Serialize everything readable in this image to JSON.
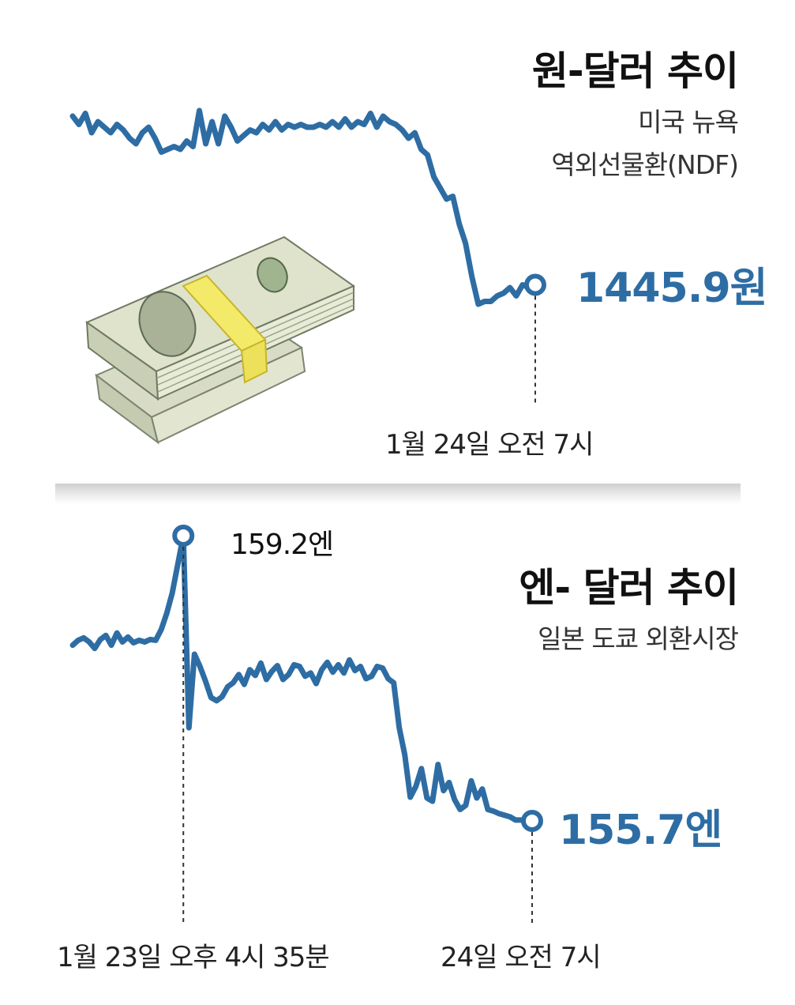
{
  "colors": {
    "line": "#2e6da4",
    "text": "#111111",
    "divider": "#d6d6d6"
  },
  "chart_data": [
    {
      "type": "line",
      "title": "원-달러 추이",
      "subtitle_lines": [
        "미국 뉴욕",
        "역외선물환(NDF)"
      ],
      "end_value_label": "1445.9원",
      "end_time_label": "1월 24일 오전 7시",
      "y": [
        1452.0,
        1451.7,
        1452.1,
        1451.4,
        1451.8,
        1451.6,
        1451.4,
        1451.7,
        1451.5,
        1451.2,
        1451.0,
        1451.4,
        1451.6,
        1451.2,
        1450.7,
        1450.8,
        1450.9,
        1450.8,
        1451.1,
        1450.9,
        1452.2,
        1451.0,
        1451.8,
        1451.0,
        1452.0,
        1451.6,
        1451.1,
        1451.3,
        1451.5,
        1451.4,
        1451.7,
        1451.5,
        1451.8,
        1451.5,
        1451.7,
        1451.6,
        1451.7,
        1451.6,
        1451.6,
        1451.7,
        1451.6,
        1451.8,
        1451.6,
        1451.9,
        1451.6,
        1451.8,
        1451.7,
        1452.1,
        1451.6,
        1452.0,
        1451.8,
        1451.7,
        1451.5,
        1451.2,
        1451.4,
        1450.8,
        1450.6,
        1449.8,
        1449.4,
        1449.0,
        1449.1,
        1448.1,
        1447.4,
        1446.2,
        1445.2,
        1445.3,
        1445.3,
        1445.5,
        1445.6,
        1445.8,
        1445.5,
        1445.9,
        1445.8,
        1445.9
      ]
    },
    {
      "type": "line",
      "title": "엔- 달러 추이",
      "subtitle": "일본 도쿄 외환시장",
      "peak_value_label": "159.2엔",
      "peak_time_label": "1월 23일 오후 4시 35분",
      "end_value_label": "155.7엔",
      "end_time_label": "24일 오전 7시",
      "y": [
        157.86,
        157.92,
        157.95,
        157.9,
        157.82,
        157.93,
        157.98,
        157.86,
        158.01,
        157.9,
        157.96,
        157.89,
        157.92,
        157.9,
        157.93,
        157.92,
        158.05,
        158.25,
        158.5,
        158.85,
        159.2,
        156.85,
        157.75,
        157.6,
        157.42,
        157.22,
        157.18,
        157.23,
        157.35,
        157.4,
        157.5,
        157.38,
        157.56,
        157.49,
        157.64,
        157.44,
        157.54,
        157.61,
        157.44,
        157.5,
        157.62,
        157.6,
        157.48,
        157.52,
        157.39,
        157.56,
        157.65,
        157.53,
        157.62,
        157.52,
        157.68,
        157.55,
        157.6,
        157.45,
        157.48,
        157.6,
        157.58,
        157.45,
        157.4,
        156.85,
        156.52,
        156.0,
        156.13,
        156.35,
        155.99,
        155.95,
        156.4,
        156.08,
        156.18,
        155.97,
        155.85,
        155.9,
        156.2,
        155.99,
        156.1,
        155.85,
        155.83,
        155.8,
        155.78,
        155.76,
        155.72,
        155.72,
        155.7,
        155.71
      ]
    }
  ]
}
